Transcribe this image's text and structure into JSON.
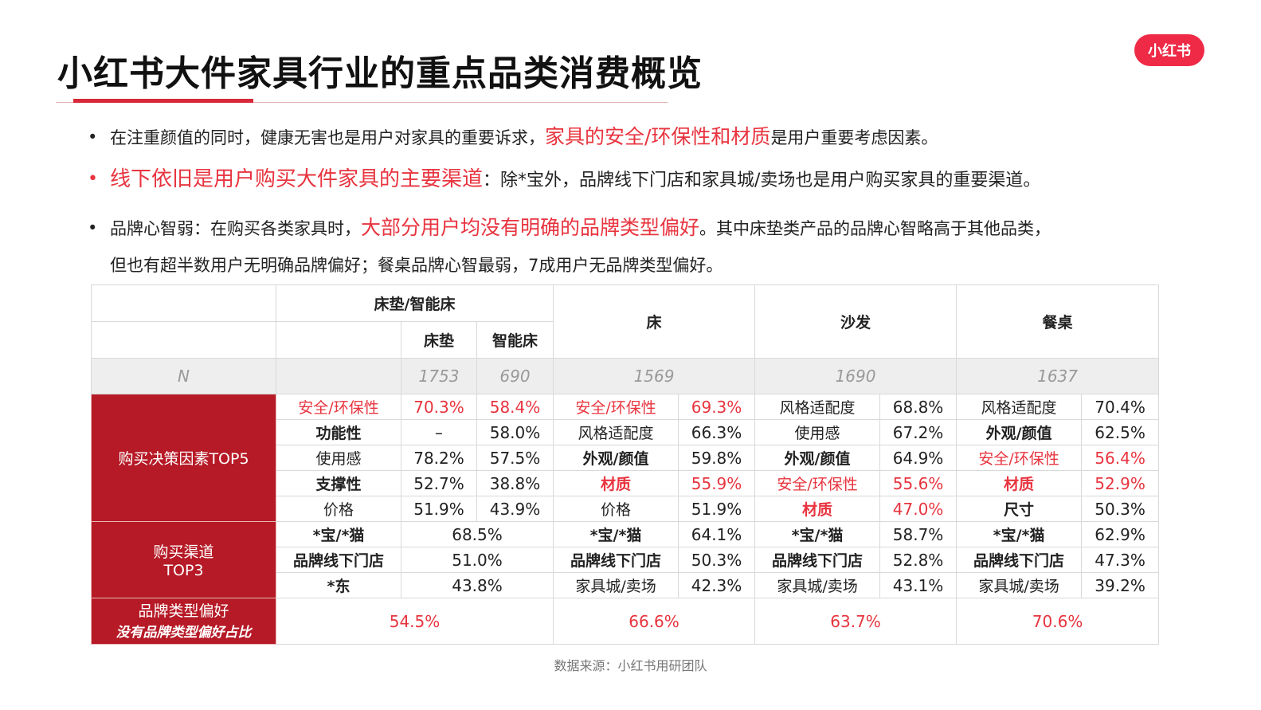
{
  "title": "小红书大件家具行业的重点品类消费概览",
  "logo_text": "小红书",
  "bullets": {
    "b1": {
      "dot": "•",
      "pre": "在注重颜值的同时，健康无害也是用户对家具的重要诉求，",
      "hl": "家具的安全/环保性和材质",
      "post": "是用户重要考虑因素。"
    },
    "b2": {
      "dot": "•",
      "hl": "线下依旧是用户购买大件家具的主要渠道",
      "post": "：除*宝外，品牌线下门店和家具城/卖场也是用户购买家具的重要渠道。"
    },
    "b3": {
      "dot": "•",
      "pre": "品牌心智弱：在购买各类家具时，",
      "hl": "大部分用户均没有明确的品牌类型偏好",
      "post": "。其中床垫类产品的品牌心智略高于其他品类，",
      "line2": "但也有超半数用户无明确品牌偏好；餐桌品牌心智最弱，7成用户无品牌类型偏好。"
    }
  },
  "table": {
    "headers": {
      "group1": "床垫/智能床",
      "mattress": "床垫",
      "smartbed": "智能床",
      "bed": "床",
      "sofa": "沙发",
      "dining": "餐桌"
    },
    "n_row": {
      "label": "N",
      "mattress": "1753",
      "smartbed": "690",
      "bed": "1569",
      "sofa": "1690",
      "dining": "1637"
    },
    "decision": {
      "label": "购买决策因素TOP5",
      "rows": [
        {
          "m_factor": "安全/环保性",
          "m_val": "70.3%",
          "s_val": "58.4%",
          "bed_f": "安全/环保性",
          "bed_v": "69.3%",
          "sofa_f": "风格适配度",
          "sofa_v": "68.8%",
          "din_f": "风格适配度",
          "din_v": "70.4%"
        },
        {
          "m_factor": "功能性",
          "m_val": "–",
          "s_val": "58.0%",
          "bed_f": "风格适配度",
          "bed_v": "66.3%",
          "sofa_f": "使用感",
          "sofa_v": "67.2%",
          "din_f": "外观/颜值",
          "din_v": "62.5%"
        },
        {
          "m_factor": "使用感",
          "m_val": "78.2%",
          "s_val": "57.5%",
          "bed_f": "外观/颜值",
          "bed_v": "59.8%",
          "sofa_f": "外观/颜值",
          "sofa_v": "64.9%",
          "din_f": "安全/环保性",
          "din_v": "56.4%"
        },
        {
          "m_factor": "支撑性",
          "m_val": "52.7%",
          "s_val": "38.8%",
          "bed_f": "材质",
          "bed_v": "55.9%",
          "sofa_f": "安全/环保性",
          "sofa_v": "55.6%",
          "din_f": "材质",
          "din_v": "52.9%"
        },
        {
          "m_factor": "价格",
          "m_val": "51.9%",
          "s_val": "43.9%",
          "bed_f": "价格",
          "bed_v": "51.9%",
          "sofa_f": "材质",
          "sofa_v": "47.0%",
          "din_f": "尺寸",
          "din_v": "50.3%"
        }
      ]
    },
    "channel": {
      "label1": "购买渠道",
      "label2": "TOP3",
      "rows": [
        {
          "m_ch": "*宝/*猫",
          "m_v": "68.5%",
          "bed_ch": "*宝/*猫",
          "bed_v": "64.1%",
          "sofa_ch": "*宝/*猫",
          "sofa_v": "58.7%",
          "din_ch": "*宝/*猫",
          "din_v": "62.9%"
        },
        {
          "m_ch": "品牌线下门店",
          "m_v": "51.0%",
          "bed_ch": "品牌线下门店",
          "bed_v": "50.3%",
          "sofa_ch": "品牌线下门店",
          "sofa_v": "52.8%",
          "din_ch": "品牌线下门店",
          "din_v": "47.3%"
        },
        {
          "m_ch": "*东",
          "m_v": "43.8%",
          "bed_ch": "家具城/卖场",
          "bed_v": "42.3%",
          "sofa_ch": "家具城/卖场",
          "sofa_v": "43.1%",
          "din_ch": "家具城/卖场",
          "din_v": "39.2%"
        }
      ]
    },
    "preference": {
      "label": "品牌类型偏好",
      "sublabel": "没有品牌类型偏好占比",
      "mattress": "54.5%",
      "bed": "66.6%",
      "sofa": "63.7%",
      "dining": "70.6%"
    }
  },
  "source": "数据来源：小红书用研团队",
  "colors": {
    "accent_red": "#e8343f",
    "header_red": "#b61a26",
    "logo_red": "#ee2a47"
  }
}
